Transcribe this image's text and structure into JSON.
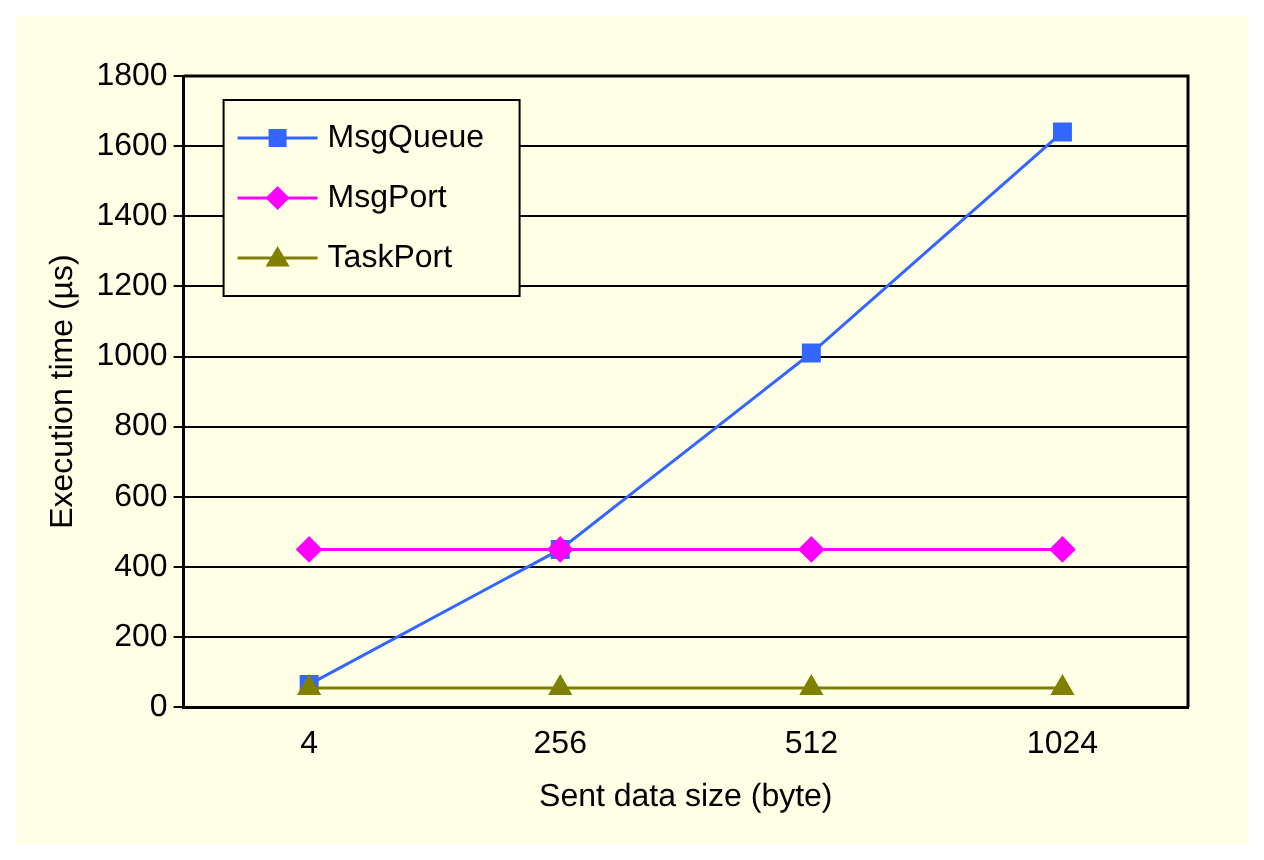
{
  "chart_data": {
    "type": "line",
    "xlabel": "Sent data size (byte)",
    "ylabel": "Execution time (µs)",
    "categories": [
      "4",
      "256",
      "512",
      "1024"
    ],
    "ylim": [
      0,
      1800
    ],
    "yticks": [
      0,
      200,
      400,
      600,
      800,
      1000,
      1200,
      1400,
      1600,
      1800
    ],
    "grid": "y",
    "legend": "top left",
    "series": [
      {
        "name": "MsgQueue",
        "color": "#3366ff",
        "marker": "square",
        "values": [
          65,
          450,
          1010,
          1640
        ]
      },
      {
        "name": "MsgPort",
        "color": "#ff00ff",
        "marker": "diamond",
        "values": [
          450,
          450,
          450,
          450
        ]
      },
      {
        "name": "TaskPort",
        "color": "#808000",
        "marker": "triangle",
        "values": [
          55,
          55,
          55,
          55
        ]
      }
    ]
  }
}
